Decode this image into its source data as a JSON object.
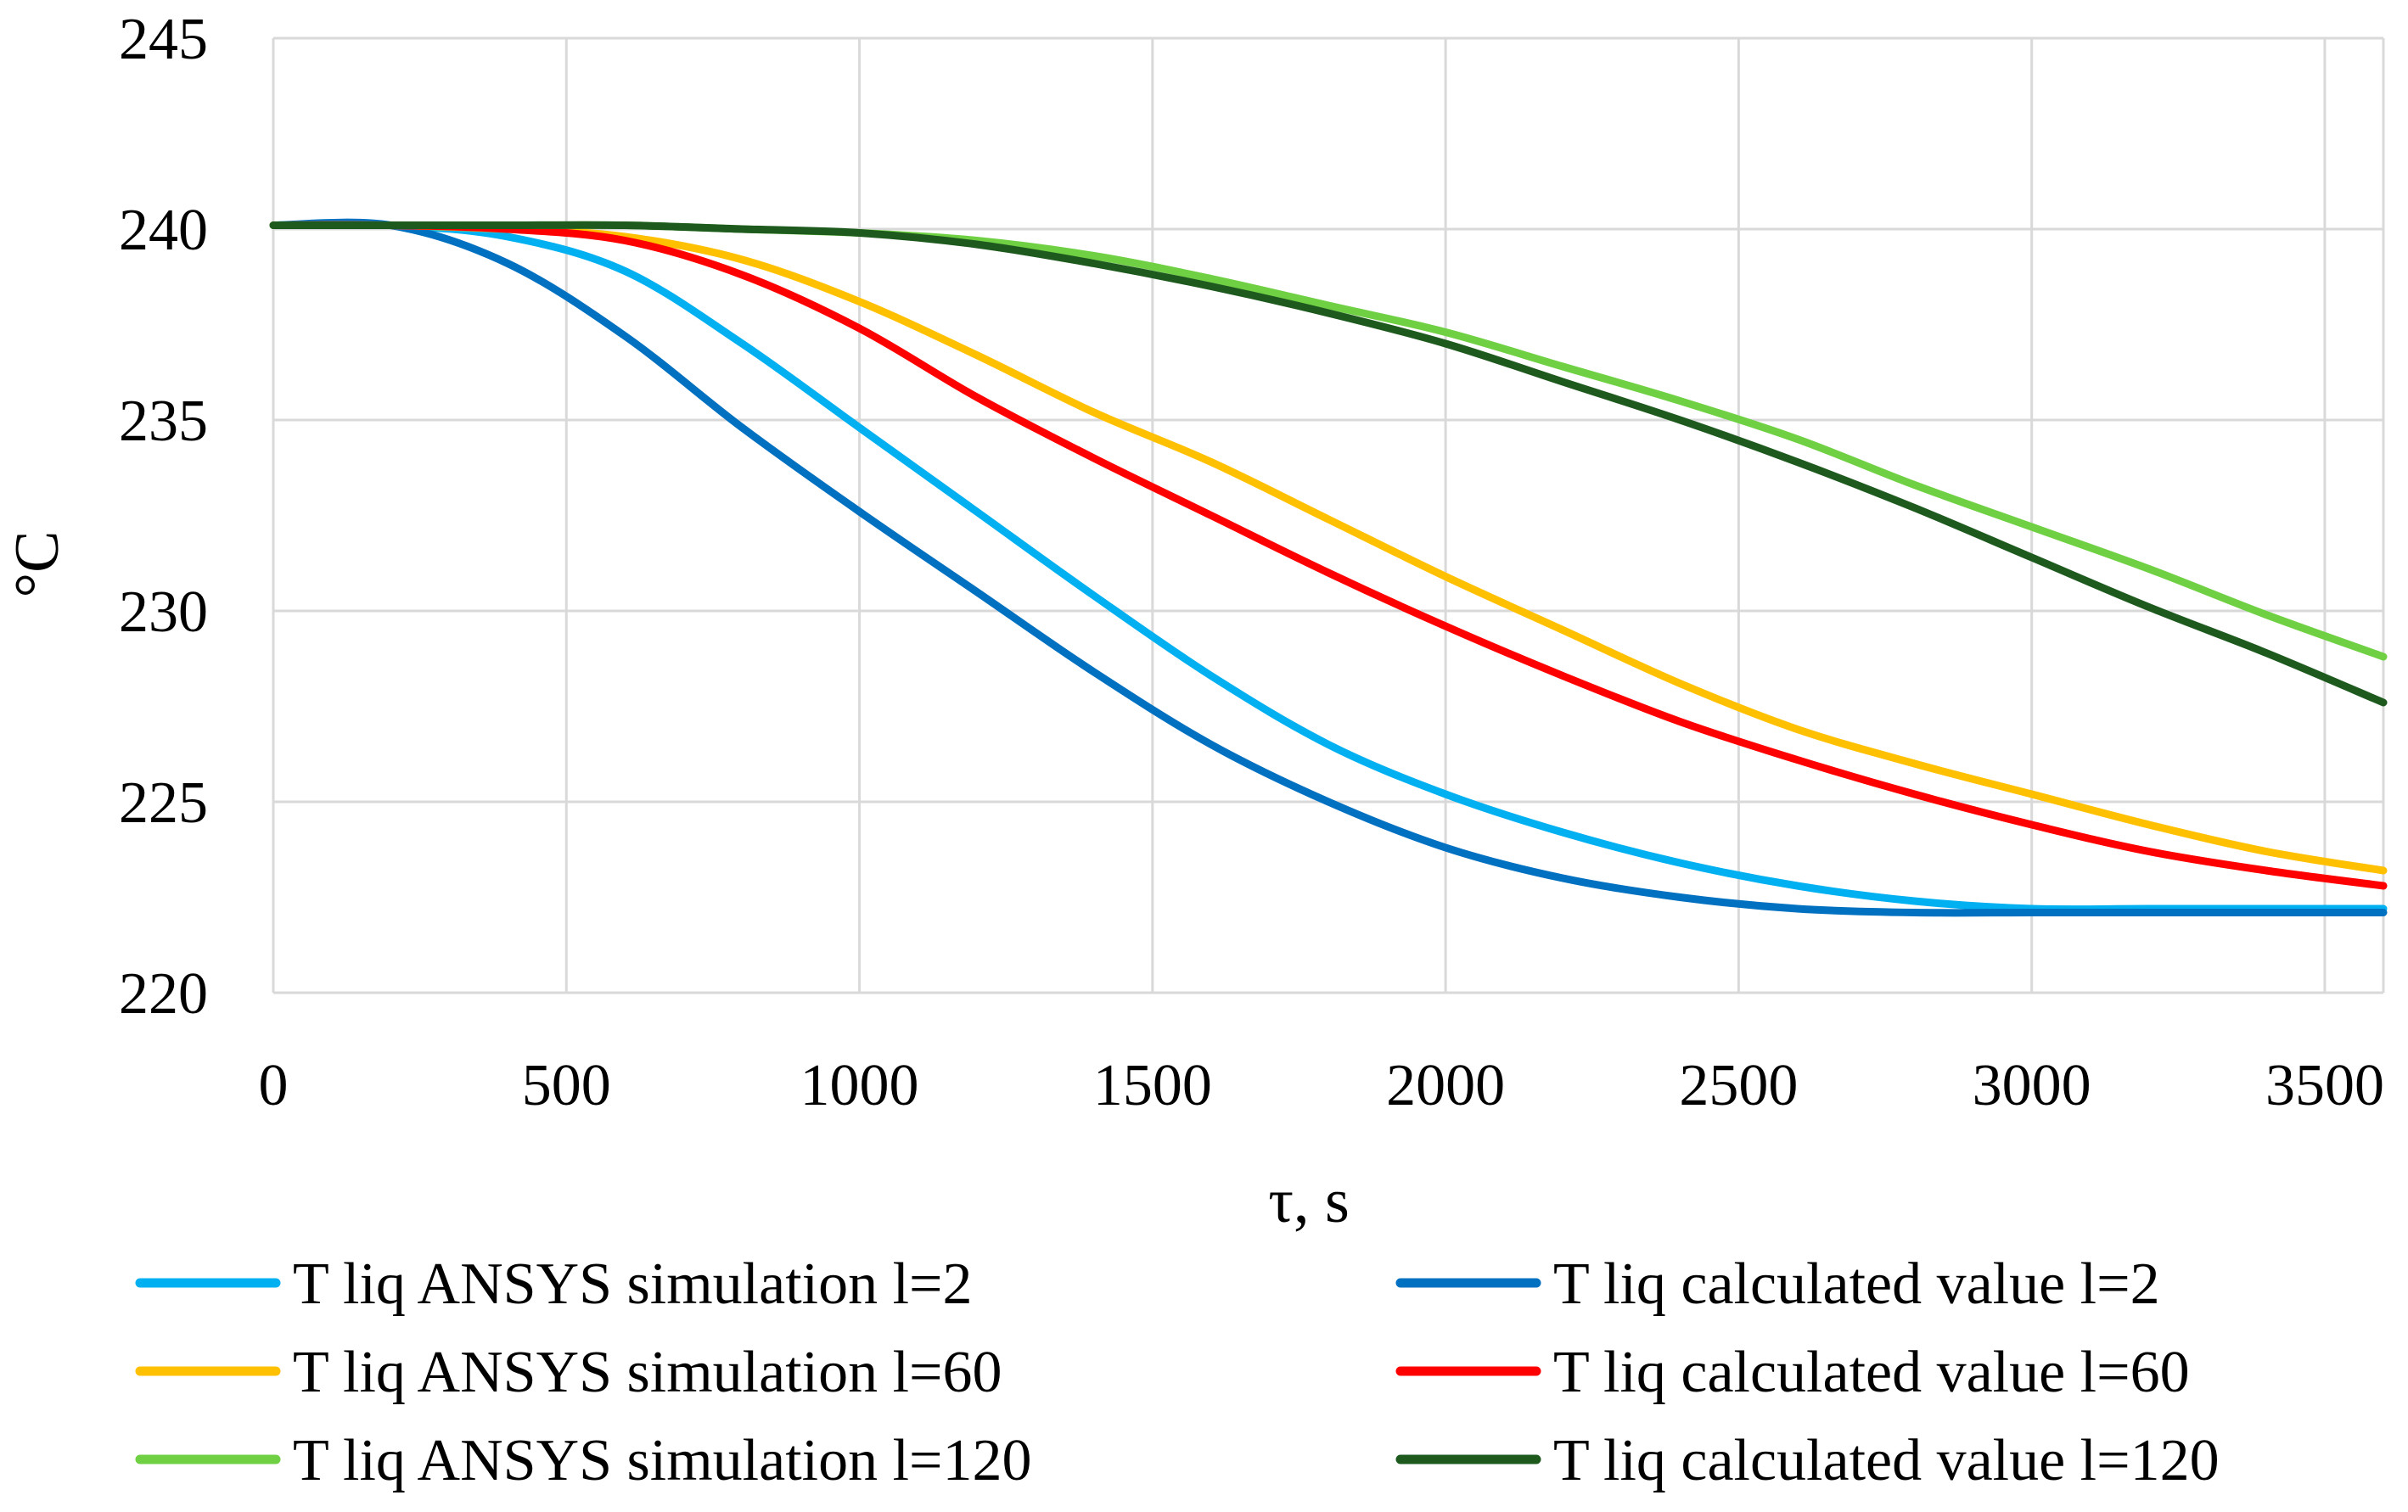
{
  "chart_data": {
    "type": "line",
    "title": "",
    "xlabel": "τ, s",
    "ylabel": "°C",
    "xlim": [
      0,
      3600
    ],
    "ylim": [
      220,
      245
    ],
    "xticks": [
      "0",
      "500",
      "1000",
      "1500",
      "2000",
      "2500",
      "3000",
      "3500"
    ],
    "yticks": [
      "220",
      "225",
      "230",
      "235",
      "240",
      "245"
    ],
    "grid": true,
    "legend_position": "bottom",
    "x": [
      0,
      200,
      400,
      600,
      800,
      1000,
      1200,
      1400,
      1600,
      1800,
      2000,
      2200,
      2400,
      2600,
      2800,
      3000,
      3200,
      3400,
      3600
    ],
    "series": [
      {
        "name": "T liq ANSYS simulation l=2",
        "color": "#00b0f0",
        "values": [
          240.1,
          240.1,
          239.8,
          238.9,
          237.0,
          234.8,
          232.6,
          230.4,
          228.3,
          226.5,
          225.2,
          224.2,
          223.4,
          222.8,
          222.4,
          222.2,
          222.2,
          222.2,
          222.2
        ]
      },
      {
        "name": "T liq calculated value l=2",
        "color": "#0070c0",
        "values": [
          240.1,
          240.1,
          239.1,
          237.2,
          234.8,
          232.6,
          230.5,
          228.4,
          226.5,
          225.0,
          223.8,
          223.0,
          222.5,
          222.2,
          222.1,
          222.1,
          222.1,
          222.1,
          222.1
        ]
      },
      {
        "name": "T liq ANSYS simulation l=60",
        "color": "#ffc000",
        "values": [
          240.1,
          240.1,
          240.0,
          239.8,
          239.2,
          238.1,
          236.7,
          235.2,
          233.9,
          232.4,
          230.9,
          229.5,
          228.1,
          226.9,
          226.0,
          225.2,
          224.4,
          223.7,
          223.2
        ]
      },
      {
        "name": "T liq calculated value l=60",
        "color": "#ff0000",
        "values": [
          240.1,
          240.1,
          240.0,
          239.7,
          238.8,
          237.4,
          235.6,
          234.0,
          232.5,
          231.0,
          229.6,
          228.3,
          227.1,
          226.1,
          225.2,
          224.4,
          223.7,
          223.2,
          222.8
        ]
      },
      {
        "name": "T liq ANSYS simulation l=120",
        "color": "#70d044",
        "values": [
          240.1,
          240.1,
          240.1,
          240.1,
          240.0,
          239.9,
          239.7,
          239.3,
          238.7,
          238.0,
          237.3,
          236.4,
          235.5,
          234.5,
          233.3,
          232.2,
          231.1,
          229.9,
          228.8
        ]
      },
      {
        "name": "T liq calculated value l=120",
        "color": "#1e5a1e",
        "values": [
          240.1,
          240.1,
          240.1,
          240.1,
          240.0,
          239.9,
          239.6,
          239.1,
          238.5,
          237.8,
          237.0,
          236.0,
          235.0,
          233.9,
          232.7,
          231.4,
          230.1,
          228.9,
          227.6
        ]
      }
    ]
  }
}
